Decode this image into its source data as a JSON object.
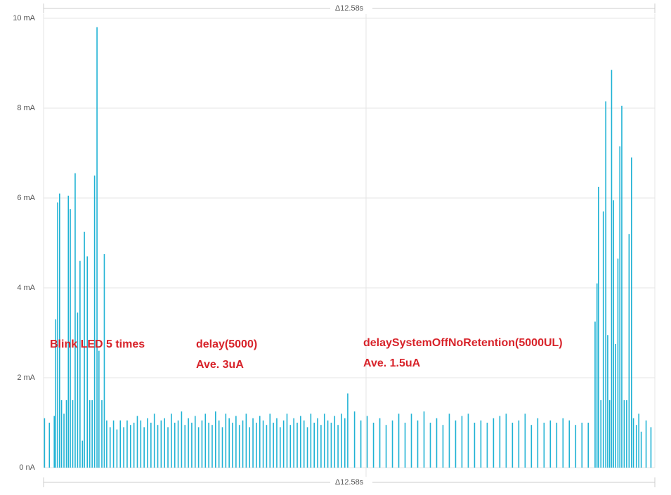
{
  "chart_data": {
    "type": "spikes",
    "span_label": "Δ12.58s",
    "annotations": [
      "Blink LED 5 times",
      "delay(5000)",
      "Ave. 3uA",
      "delaySystemOffNoRetention(5000UL)",
      "Ave. 1.5uA"
    ],
    "xlim": [
      0,
      12.58
    ],
    "ylim": [
      0,
      10
    ],
    "yticks": [
      {
        "value": 0,
        "label": "0 nA"
      },
      {
        "value": 2,
        "label": "2 mA"
      },
      {
        "value": 4,
        "label": "4 mA"
      },
      {
        "value": 6,
        "label": "6 mA"
      },
      {
        "value": 8,
        "label": "8 mA"
      },
      {
        "value": 10,
        "label": "10 mA"
      }
    ],
    "grid": true,
    "series": [
      {
        "color": "#1fb2d4",
        "x": [
          0.02,
          0.12,
          0.22,
          0.25,
          0.29,
          0.33,
          0.37,
          0.42,
          0.47,
          0.51,
          0.55,
          0.6,
          0.65,
          0.7,
          0.75,
          0.8,
          0.84,
          0.9,
          0.95,
          1.0,
          1.05,
          1.1,
          1.14,
          1.2,
          1.25,
          1.3,
          1.37,
          1.44,
          1.51,
          1.58,
          1.65,
          1.72,
          1.79,
          1.86,
          1.93,
          2.0,
          2.07,
          2.14,
          2.21,
          2.28,
          2.35,
          2.42,
          2.49,
          2.56,
          2.63,
          2.7,
          2.77,
          2.84,
          2.91,
          2.98,
          3.05,
          3.12,
          3.19,
          3.26,
          3.33,
          3.4,
          3.47,
          3.54,
          3.61,
          3.68,
          3.75,
          3.82,
          3.89,
          3.96,
          4.03,
          4.1,
          4.17,
          4.24,
          4.31,
          4.38,
          4.45,
          4.52,
          4.59,
          4.66,
          4.73,
          4.8,
          4.87,
          4.94,
          5.01,
          5.08,
          5.15,
          5.22,
          5.29,
          5.36,
          5.43,
          5.5,
          5.57,
          5.64,
          5.71,
          5.78,
          5.85,
          5.92,
          5.99,
          6.06,
          6.13,
          6.2,
          6.26,
          6.4,
          6.53,
          6.66,
          6.79,
          6.92,
          7.05,
          7.18,
          7.31,
          7.44,
          7.57,
          7.7,
          7.83,
          7.96,
          8.09,
          8.22,
          8.35,
          8.48,
          8.61,
          8.74,
          8.87,
          9.0,
          9.13,
          9.26,
          9.39,
          9.52,
          9.65,
          9.78,
          9.91,
          10.04,
          10.17,
          10.3,
          10.43,
          10.56,
          10.69,
          10.82,
          10.95,
          11.08,
          11.21,
          11.35,
          11.39,
          11.42,
          11.47,
          11.52,
          11.57,
          11.61,
          11.65,
          11.69,
          11.73,
          11.77,
          11.82,
          11.86,
          11.9,
          11.95,
          12.0,
          12.05,
          12.1,
          12.14,
          12.2,
          12.25,
          12.3,
          12.4,
          12.5
        ],
        "values": [
          1.1,
          1.0,
          1.15,
          3.3,
          5.9,
          6.1,
          1.5,
          1.2,
          1.5,
          6.05,
          5.75,
          1.5,
          6.55,
          3.45,
          4.6,
          0.6,
          5.25,
          4.7,
          1.5,
          1.5,
          6.5,
          9.8,
          2.6,
          1.5,
          4.75,
          1.05,
          0.9,
          1.05,
          0.85,
          1.05,
          0.9,
          1.05,
          0.95,
          1.0,
          1.15,
          1.05,
          0.9,
          1.1,
          1.0,
          1.2,
          0.95,
          1.05,
          1.1,
          0.9,
          1.2,
          1.0,
          1.05,
          1.25,
          0.95,
          1.1,
          1.0,
          1.15,
          0.9,
          1.05,
          1.2,
          1.0,
          0.95,
          1.25,
          1.05,
          0.9,
          1.2,
          1.1,
          1.0,
          1.15,
          0.95,
          1.05,
          1.2,
          0.9,
          1.1,
          1.0,
          1.15,
          1.05,
          0.95,
          1.2,
          1.0,
          1.1,
          0.9,
          1.05,
          1.2,
          0.95,
          1.1,
          1.0,
          1.15,
          1.05,
          0.9,
          1.2,
          1.0,
          1.1,
          0.95,
          1.2,
          1.05,
          1.0,
          1.15,
          0.95,
          1.2,
          1.1,
          1.65,
          1.25,
          1.05,
          1.15,
          1.0,
          1.1,
          0.95,
          1.05,
          1.2,
          1.0,
          1.2,
          1.05,
          1.25,
          1.0,
          1.1,
          0.95,
          1.2,
          1.05,
          1.15,
          1.2,
          1.0,
          1.05,
          1.0,
          1.1,
          1.15,
          1.2,
          1.0,
          1.05,
          1.2,
          0.95,
          1.1,
          1.0,
          1.05,
          1.0,
          1.1,
          1.05,
          0.95,
          1.0,
          1.0,
          3.25,
          4.1,
          6.25,
          1.5,
          5.7,
          8.15,
          2.95,
          1.5,
          8.85,
          5.95,
          2.75,
          4.65,
          7.15,
          8.05,
          1.5,
          1.5,
          5.2,
          6.9,
          1.1,
          0.95,
          1.2,
          0.8,
          1.05,
          0.9
        ]
      }
    ]
  }
}
